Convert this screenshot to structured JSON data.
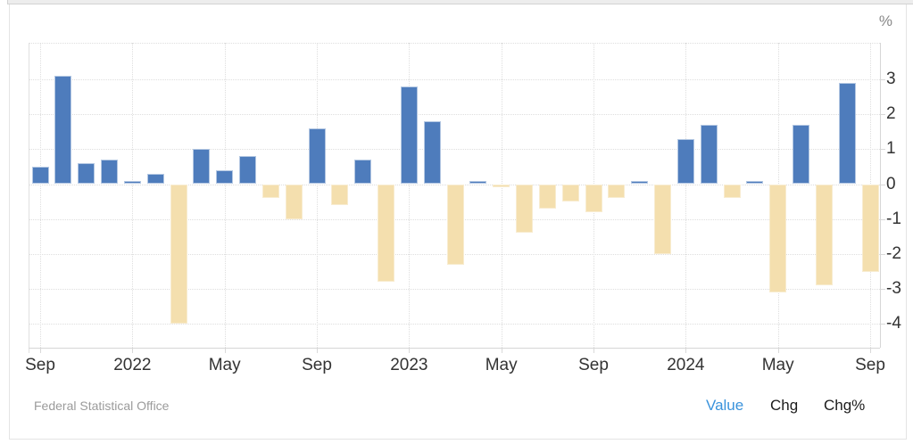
{
  "chart": {
    "unit_label": "%"
  },
  "footer": {
    "source": "Federal Statistical Office",
    "toggles": [
      {
        "label": "Value",
        "active": true
      },
      {
        "label": "Chg",
        "active": false
      },
      {
        "label": "Chg%",
        "active": false
      }
    ]
  },
  "colors": {
    "bar_positive": "#4e7cbc",
    "bar_negative": "#f4dfae",
    "gridline": "#dedede",
    "axis_line": "#d6d6d6",
    "axis_label": "#333333",
    "unit_label": "#888888",
    "source_text": "#9b9b9b",
    "toggle_active": "#3a93dc",
    "toggle_inactive": "#1c1c1c"
  },
  "chart_data": {
    "type": "bar",
    "title": "",
    "xlabel": "",
    "ylabel": "%",
    "ylim": [
      -4.7,
      4.05
    ],
    "yticks": [
      3,
      2,
      1,
      0,
      -1,
      -2,
      -3,
      -4
    ],
    "grid": "dotted",
    "legend": "none",
    "categories": [
      "Sep 2021",
      "Oct 2021",
      "Nov 2021",
      "Dec 2021",
      "Jan 2022",
      "Feb 2022",
      "Mar 2022",
      "Apr 2022",
      "May 2022",
      "Jun 2022",
      "Jul 2022",
      "Aug 2022",
      "Sep 2022",
      "Oct 2022",
      "Nov 2022",
      "Dec 2022",
      "Jan 2023",
      "Feb 2023",
      "Mar 2023",
      "Apr 2023",
      "May 2023",
      "Jun 2023",
      "Jul 2023",
      "Aug 2023",
      "Sep 2023",
      "Oct 2023",
      "Nov 2023",
      "Dec 2023",
      "Jan 2024",
      "Feb 2024",
      "Mar 2024",
      "Apr 2024",
      "May 2024",
      "Jun 2024",
      "Jul 2024",
      "Aug 2024",
      "Sep 2024"
    ],
    "values": [
      0.5,
      3.1,
      0.6,
      0.7,
      0.1,
      0.3,
      -4.0,
      1.0,
      0.4,
      0.8,
      -0.4,
      -1.0,
      1.6,
      -0.6,
      0.7,
      -2.8,
      2.8,
      1.8,
      -2.3,
      0.1,
      -0.1,
      -1.4,
      -0.7,
      -0.5,
      -0.8,
      -0.4,
      0.1,
      -2.0,
      1.3,
      1.7,
      -0.4,
      0.1,
      -3.1,
      1.7,
      -2.9,
      2.9,
      -2.5
    ],
    "x_axis_ticks": [
      {
        "index": 0,
        "label": "Sep"
      },
      {
        "index": 4,
        "label": "2022"
      },
      {
        "index": 8,
        "label": "May"
      },
      {
        "index": 12,
        "label": "Sep"
      },
      {
        "index": 16,
        "label": "2023"
      },
      {
        "index": 20,
        "label": "May"
      },
      {
        "index": 24,
        "label": "Sep"
      },
      {
        "index": 28,
        "label": "2024"
      },
      {
        "index": 32,
        "label": "May"
      },
      {
        "index": 36,
        "label": "Sep"
      }
    ]
  }
}
